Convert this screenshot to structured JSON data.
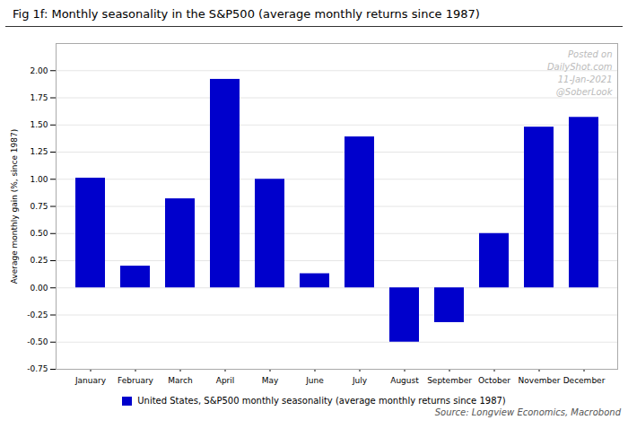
{
  "chart_data": {
    "type": "bar",
    "title": "Fig 1f: Monthly seasonality in the S&P500 (average monthly returns since 1987)",
    "ylabel": "Average monthly gain (%, since 1987)",
    "categories": [
      "January",
      "February",
      "March",
      "April",
      "May",
      "June",
      "July",
      "August",
      "September",
      "October",
      "November",
      "December"
    ],
    "series": [
      {
        "name": "United States, S&P500 monthly seasonality (average monthly returns since 1987)",
        "color": "#0000CC",
        "values": [
          1.01,
          0.2,
          0.82,
          1.92,
          1.0,
          0.13,
          1.39,
          -0.5,
          -0.32,
          0.5,
          1.48,
          1.57
        ]
      }
    ],
    "ylim": [
      -0.75,
      2.25
    ],
    "yticks": [
      -0.75,
      {
        "value": -0.5,
        "label": "-0.50"
      },
      -0.25,
      {
        "value": 0,
        "label": "0.00"
      },
      0.25,
      {
        "value": 0.5,
        "label": "0.50"
      },
      0.75,
      {
        "value": 1,
        "label": "1.00"
      },
      1.25,
      {
        "value": 1.5,
        "label": "1.50"
      },
      1.75,
      {
        "value": 2,
        "label": "2.00"
      }
    ],
    "grid": true,
    "legend": "bottom",
    "annotations": [
      "Posted on",
      "DailyShot.com",
      "11-Jan-2021",
      "@SoberLook"
    ],
    "caption": "Source: Longview Economics, Macrobond"
  }
}
